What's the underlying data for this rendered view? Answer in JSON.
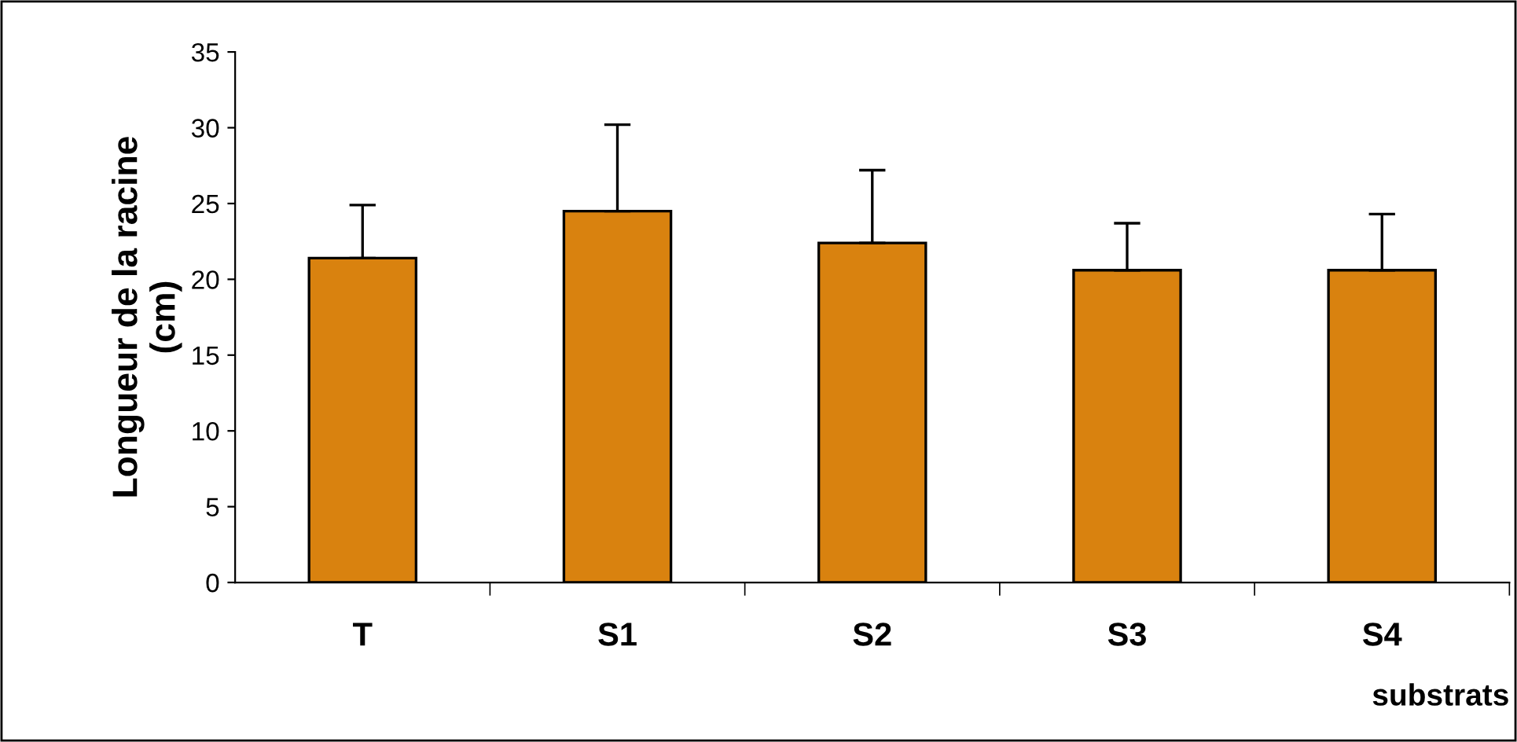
{
  "chart_data": {
    "type": "bar",
    "ylabel": "Longueur de la racine\n(cm)",
    "xlabel": "substrats",
    "categories": [
      "T",
      "S1",
      "S2",
      "S3",
      "S4"
    ],
    "values": [
      21.4,
      24.5,
      22.4,
      20.6,
      20.6
    ],
    "errors": [
      [
        21.4,
        24.9
      ],
      [
        24.5,
        30.2
      ],
      [
        22.4,
        27.2
      ],
      [
        20.6,
        23.7
      ],
      [
        20.6,
        24.3
      ]
    ],
    "color": "#d9820f",
    "ylim": [
      0,
      35
    ],
    "yticks": [
      0,
      5,
      10,
      15,
      20,
      25,
      30,
      35
    ],
    "grid": false,
    "legend": false
  }
}
